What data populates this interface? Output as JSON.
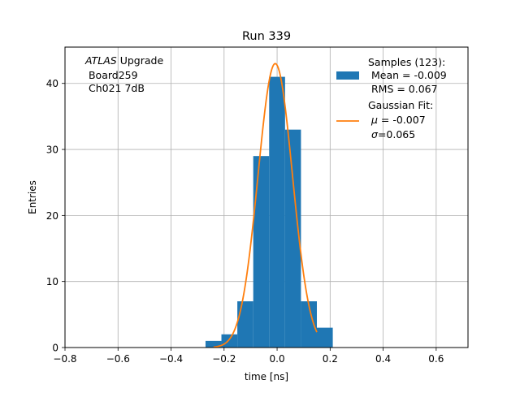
{
  "chart_data": {
    "type": "bar",
    "title": "Run 339",
    "xlabel": "time [ns]",
    "ylabel": "Entries",
    "xlim": [
      -0.8,
      0.72
    ],
    "ylim": [
      0,
      45.5
    ],
    "grid": true,
    "xticks": [
      -0.8,
      -0.6,
      -0.4,
      -0.2,
      0.0,
      0.2,
      0.4,
      0.6
    ],
    "xtick_labels": [
      "−0.8",
      "−0.6",
      "−0.4",
      "−0.2",
      "0.0",
      "0.2",
      "0.4",
      "0.6"
    ],
    "yticks": [
      0,
      10,
      20,
      30,
      40
    ],
    "ytick_labels": [
      "0",
      "10",
      "20",
      "30",
      "40"
    ],
    "annotation": {
      "italic": "ATLAS",
      "rest": " Upgrade",
      "line2": " Board259",
      "line3": " Ch021 7dB"
    },
    "legend": {
      "placement": "top-right",
      "hist_lines": [
        "Samples (123):",
        " Mean = -0.009",
        " RMS = 0.067"
      ],
      "fit_title": "Gaussian Fit:",
      "fit_mu_symbol": "μ",
      "fit_mu_value": " = -0.007",
      "fit_sigma_symbol": "σ",
      "fit_sigma_value": "=0.065"
    },
    "series": [
      {
        "type": "histogram",
        "color": "#1f77b4",
        "bins": [
          {
            "x0": -0.27,
            "x1": -0.21,
            "y": 1
          },
          {
            "x0": -0.21,
            "x1": -0.15,
            "y": 2
          },
          {
            "x0": -0.15,
            "x1": -0.09,
            "y": 7
          },
          {
            "x0": -0.09,
            "x1": -0.03,
            "y": 29
          },
          {
            "x0": -0.03,
            "x1": 0.03,
            "y": 41
          },
          {
            "x0": 0.03,
            "x1": 0.09,
            "y": 33
          },
          {
            "x0": 0.09,
            "x1": 0.15,
            "y": 7
          },
          {
            "x0": 0.15,
            "x1": 0.21,
            "y": 3
          }
        ]
      },
      {
        "type": "line",
        "color": "#ff7f0e",
        "amplitude": 43.0,
        "mu": -0.007,
        "sigma": 0.065,
        "x_range": [
          -0.24,
          0.15
        ]
      }
    ]
  }
}
